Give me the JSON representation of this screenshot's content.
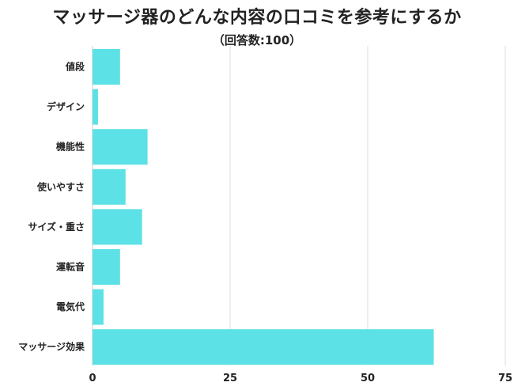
{
  "chart_data": {
    "type": "bar",
    "orientation": "horizontal",
    "title": "マッサージ器のどんな内容の口コミを参考にするか",
    "subtitle": "（回答数:100）",
    "categories": [
      "値段",
      "デザイン",
      "機能性",
      "使いやすさ",
      "サイズ・重さ",
      "運転音",
      "電気代",
      "マッサージ効果"
    ],
    "values": [
      5,
      1,
      10,
      6,
      9,
      5,
      2,
      62
    ],
    "xlim": [
      0,
      75
    ],
    "xticks": [
      "0",
      "25",
      "50",
      "75"
    ],
    "grid": true,
    "bar_color": "#5ce1e6"
  }
}
